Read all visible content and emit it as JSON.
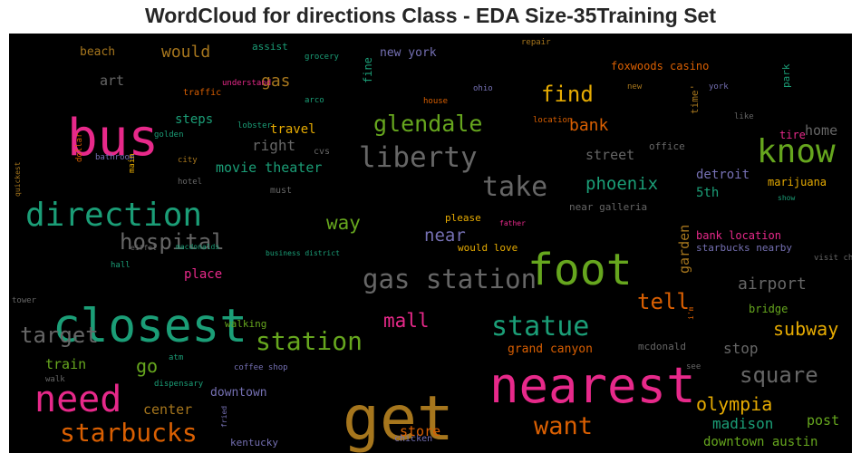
{
  "title": "WordCloud for directions Class - EDA Size-35Training Set",
  "colors": {
    "pink": "#e7298a",
    "green": "#1b9e77",
    "lime": "#66a61e",
    "orange": "#d95f02",
    "gold": "#a6761d",
    "yellow": "#e6ab02",
    "purple": "#7570b3",
    "gray": "#666666"
  },
  "words": [
    {
      "t": "get",
      "c": "gold"
    },
    {
      "t": "nearest",
      "c": "pink"
    },
    {
      "t": "closest",
      "c": "green"
    },
    {
      "t": "bus",
      "c": "pink"
    },
    {
      "t": "foot",
      "c": "lime"
    },
    {
      "t": "direction",
      "c": "green"
    },
    {
      "t": "need",
      "c": "pink"
    },
    {
      "t": "liberty",
      "c": "gray"
    },
    {
      "t": "know",
      "c": "lime"
    },
    {
      "t": "take",
      "c": "gray"
    },
    {
      "t": "gas station",
      "c": "gray"
    },
    {
      "t": "starbucks",
      "c": "orange"
    },
    {
      "t": "statue",
      "c": "green"
    },
    {
      "t": "station",
      "c": "lime"
    },
    {
      "t": "want",
      "c": "orange"
    },
    {
      "t": "glendale",
      "c": "lime"
    },
    {
      "t": "hospital",
      "c": "gray"
    },
    {
      "t": "square",
      "c": "gray"
    },
    {
      "t": "find",
      "c": "yellow"
    },
    {
      "t": "target",
      "c": "gray"
    },
    {
      "t": "olympia",
      "c": "yellow"
    },
    {
      "t": "phoenix",
      "c": "green"
    },
    {
      "t": "mall",
      "c": "pink"
    },
    {
      "t": "tell",
      "c": "orange"
    },
    {
      "t": "subway",
      "c": "yellow"
    },
    {
      "t": "airport",
      "c": "gray"
    },
    {
      "t": "would",
      "c": "gold"
    },
    {
      "t": "gas",
      "c": "gold"
    },
    {
      "t": "bank",
      "c": "orange"
    },
    {
      "t": "way",
      "c": "lime"
    },
    {
      "t": "madison",
      "c": "green"
    },
    {
      "t": "right",
      "c": "gray"
    },
    {
      "t": "near",
      "c": "purple"
    },
    {
      "t": "movie theater",
      "c": "green"
    },
    {
      "t": "street",
      "c": "gray"
    },
    {
      "t": "home",
      "c": "gray"
    },
    {
      "t": "go",
      "c": "lime"
    },
    {
      "t": "store",
      "c": "orange"
    },
    {
      "t": "stop",
      "c": "gray"
    },
    {
      "t": "post",
      "c": "lime"
    },
    {
      "t": "center",
      "c": "gold"
    },
    {
      "t": "downtown austin",
      "c": "lime"
    },
    {
      "t": "art",
      "c": "gray"
    },
    {
      "t": "train",
      "c": "lime"
    },
    {
      "t": "steps",
      "c": "green"
    },
    {
      "t": "travel",
      "c": "yellow"
    },
    {
      "t": "place",
      "c": "pink"
    },
    {
      "t": "detroit",
      "c": "purple"
    },
    {
      "t": "5th",
      "c": "green"
    },
    {
      "t": "grand canyon",
      "c": "orange"
    },
    {
      "t": "garden",
      "c": "gold"
    },
    {
      "t": "downtown",
      "c": "purple"
    },
    {
      "t": "beach",
      "c": "gold"
    },
    {
      "t": "new york",
      "c": "purple"
    },
    {
      "t": "bank location",
      "c": "pink"
    },
    {
      "t": "marijuana",
      "c": "yellow"
    },
    {
      "t": "foxwoods casino",
      "c": "orange"
    },
    {
      "t": "please",
      "c": "yellow"
    },
    {
      "t": "fine",
      "c": "green"
    },
    {
      "t": "office",
      "c": "gray"
    },
    {
      "t": "bridge",
      "c": "lime"
    },
    {
      "t": "tire",
      "c": "pink"
    },
    {
      "t": "starbucks nearby",
      "c": "purple"
    },
    {
      "t": "would love",
      "c": "yellow"
    },
    {
      "t": "near galleria",
      "c": "gray"
    },
    {
      "t": "mcdonald",
      "c": "gray"
    },
    {
      "t": "walking",
      "c": "lime"
    },
    {
      "t": "assist",
      "c": "green"
    },
    {
      "t": "must",
      "c": "gray"
    },
    {
      "t": "cvs",
      "c": "gray"
    },
    {
      "t": "kentucky",
      "c": "purple"
    },
    {
      "t": "chicken",
      "c": "purple"
    },
    {
      "t": "park",
      "c": "green"
    },
    {
      "t": "time'",
      "c": "gold"
    },
    {
      "t": "traffic",
      "c": "orange"
    },
    {
      "t": "city",
      "c": "gold"
    },
    {
      "t": "lobster",
      "c": "green"
    },
    {
      "t": "dollar",
      "c": "orange"
    },
    {
      "t": "bathroom",
      "c": "purple"
    },
    {
      "t": "main",
      "c": "yellow"
    },
    {
      "t": "golden",
      "c": "green"
    },
    {
      "t": "hotel",
      "c": "gray"
    },
    {
      "t": "quickest",
      "c": "gold"
    },
    {
      "t": "grocery",
      "c": "green"
    },
    {
      "t": "arco",
      "c": "green"
    },
    {
      "t": "understand",
      "c": "pink"
    },
    {
      "t": "ohio",
      "c": "purple"
    },
    {
      "t": "house",
      "c": "orange"
    },
    {
      "t": "location",
      "c": "orange"
    },
    {
      "t": "new",
      "c": "gold"
    },
    {
      "t": "york",
      "c": "purple"
    },
    {
      "t": "like",
      "c": "gray"
    },
    {
      "t": "repair",
      "c": "gold"
    },
    {
      "t": "show",
      "c": "green"
    },
    {
      "t": "father",
      "c": "pink"
    },
    {
      "t": "eiffel",
      "c": "gray"
    },
    {
      "t": "macdonalds",
      "c": "green"
    },
    {
      "t": "business district",
      "c": "green"
    },
    {
      "t": "hall",
      "c": "green"
    },
    {
      "t": "tower",
      "c": "gray"
    },
    {
      "t": "visit chicago",
      "c": "gray"
    },
    {
      "t": "i'm",
      "c": "orange"
    },
    {
      "t": "atm",
      "c": "green"
    },
    {
      "t": "walk",
      "c": "gray"
    },
    {
      "t": "dispensary",
      "c": "green"
    },
    {
      "t": "coffee shop",
      "c": "purple"
    },
    {
      "t": "fried",
      "c": "purple"
    },
    {
      "t": "see",
      "c": "gray"
    }
  ]
}
